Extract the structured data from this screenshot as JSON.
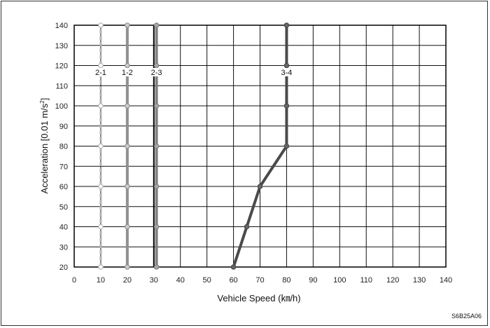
{
  "chart_data": {
    "type": "line",
    "xlabel": "Vehicle Speed (㎞/h)",
    "ylabel_main": "Acceleration [0.01 m/s",
    "ylabel_sup": "2",
    "ylabel_end": "]",
    "xlim": [
      0,
      140
    ],
    "ylim": [
      20,
      140
    ],
    "x_ticks": [
      0,
      10,
      20,
      30,
      40,
      50,
      60,
      70,
      80,
      90,
      100,
      110,
      120,
      130,
      140
    ],
    "y_ticks": [
      20,
      30,
      40,
      50,
      60,
      70,
      80,
      90,
      100,
      110,
      120,
      130,
      140
    ],
    "grid": true,
    "reference_line_x": 30,
    "series": [
      {
        "name": "2-1",
        "label_at": [
          10,
          116
        ],
        "color": "#b3b3b3",
        "marker_fill": "#ffffff",
        "dashed": true,
        "points": [
          [
            10,
            20
          ],
          [
            10,
            40
          ],
          [
            10,
            60
          ],
          [
            10,
            80
          ],
          [
            10,
            100
          ],
          [
            10,
            120
          ],
          [
            10,
            140
          ]
        ]
      },
      {
        "name": "1-2",
        "label_at": [
          20,
          116
        ],
        "color": "#909090",
        "marker_fill": "#cccccc",
        "dashed": false,
        "points": [
          [
            20,
            20
          ],
          [
            20,
            40
          ],
          [
            20,
            60
          ],
          [
            20,
            80
          ],
          [
            20,
            100
          ],
          [
            20,
            120
          ],
          [
            20,
            140
          ]
        ]
      },
      {
        "name": "2-3",
        "label_at": [
          31,
          116
        ],
        "color": "#808080",
        "marker_fill": "#a8a8a8",
        "dashed": false,
        "points": [
          [
            31,
            20
          ],
          [
            31,
            40
          ],
          [
            31,
            60
          ],
          [
            31,
            80
          ],
          [
            31,
            100
          ],
          [
            31,
            120
          ],
          [
            31,
            140
          ]
        ]
      },
      {
        "name": "3-4",
        "label_at": [
          80,
          116
        ],
        "color": "#4a4a4a",
        "marker_fill": "#666666",
        "dashed": false,
        "points": [
          [
            60,
            20
          ],
          [
            65,
            40
          ],
          [
            70,
            60
          ],
          [
            80,
            80
          ],
          [
            80,
            100
          ],
          [
            80,
            120
          ],
          [
            80,
            140
          ]
        ]
      }
    ]
  },
  "figure_code": "S6B25A06"
}
